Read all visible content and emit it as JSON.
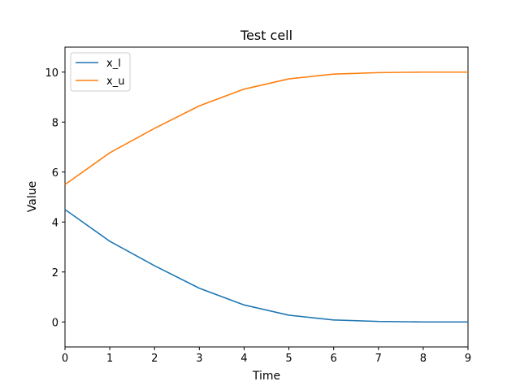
{
  "chart_data": {
    "type": "line",
    "title": "Test cell",
    "xlabel": "Time",
    "ylabel": "Value",
    "xlim": [
      0,
      9
    ],
    "ylim": [
      -1,
      11
    ],
    "xticks": [
      0,
      1,
      2,
      3,
      4,
      5,
      6,
      7,
      8,
      9
    ],
    "yticks": [
      0,
      2,
      4,
      6,
      8,
      10
    ],
    "x": [
      0,
      1,
      2,
      3,
      4,
      5,
      6,
      7,
      8,
      9
    ],
    "grid": false,
    "legend_position": "top-left",
    "series": [
      {
        "name": "x_l",
        "color": "#1f77b4",
        "values": [
          4.5,
          3.23,
          2.25,
          1.35,
          0.68,
          0.27,
          0.08,
          0.02,
          0.0,
          0.0
        ]
      },
      {
        "name": "x_u",
        "color": "#ff7f0e",
        "values": [
          5.5,
          6.77,
          7.75,
          8.65,
          9.32,
          9.73,
          9.92,
          9.98,
          10.0,
          10.0
        ]
      }
    ]
  }
}
